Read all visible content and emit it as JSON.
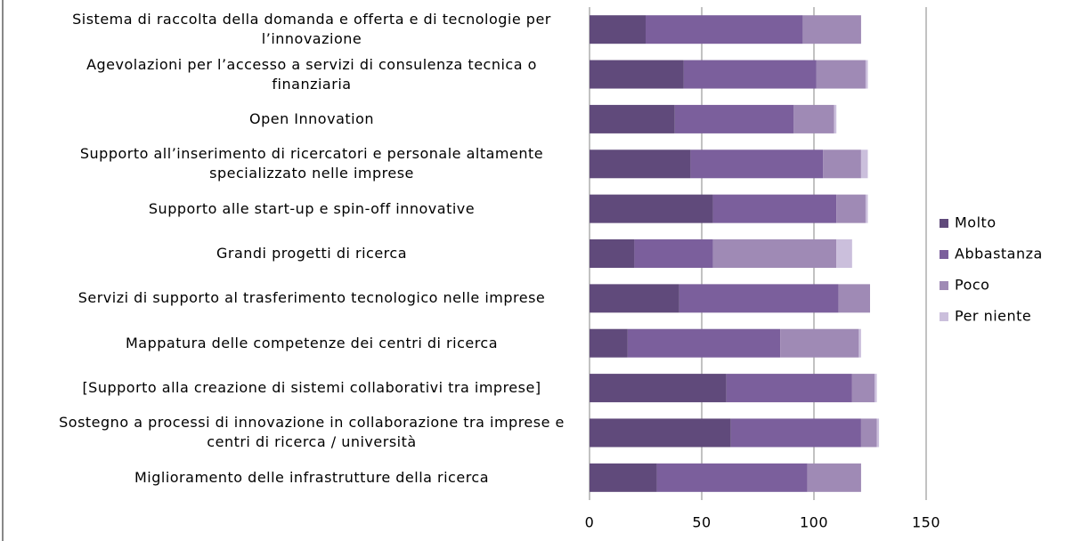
{
  "chart_data": {
    "type": "stacked-barh",
    "categories": [
      "Sistema di raccolta della domanda e offerta e di tecnologie per l’innovazione",
      "Agevolazioni per l’accesso a servizi di consulenza tecnica o finanziaria",
      "Open Innovation",
      "Supporto all’inserimento di ricercatori e personale altamente specializzato nelle imprese",
      "Supporto alle start-up e spin-off innovative",
      "Grandi progetti di ricerca",
      "Servizi di supporto al trasferimento tecnologico nelle imprese",
      "Mappatura delle competenze dei centri di ricerca",
      "[Supporto alla creazione di sistemi collaborativi tra imprese]",
      "Sostegno a processi di innovazione in collaborazione tra imprese e centri di ricerca / università",
      "Miglioramento delle infrastrutture della ricerca"
    ],
    "series": [
      {
        "name": "Molto",
        "color": "#604a7b",
        "values": [
          25,
          42,
          38,
          45,
          55,
          20,
          40,
          17,
          61,
          63,
          30
        ]
      },
      {
        "name": "Abbastanza",
        "color": "#7b5f9c",
        "values": [
          70,
          59,
          53,
          59,
          55,
          35,
          71,
          68,
          56,
          58,
          67
        ]
      },
      {
        "name": "Poco",
        "color": "#9f8ab5",
        "values": [
          26,
          22,
          18,
          17,
          13,
          55,
          14,
          35,
          10,
          7,
          24
        ]
      },
      {
        "name": "Per niente",
        "color": "#cbbfdc",
        "values": [
          0,
          1,
          1,
          3,
          1,
          7,
          0,
          1,
          1,
          1,
          0
        ]
      }
    ],
    "xlim": [
      0,
      150
    ],
    "xticks": [
      0,
      50,
      100,
      150
    ],
    "grid": true,
    "legend": "right"
  }
}
